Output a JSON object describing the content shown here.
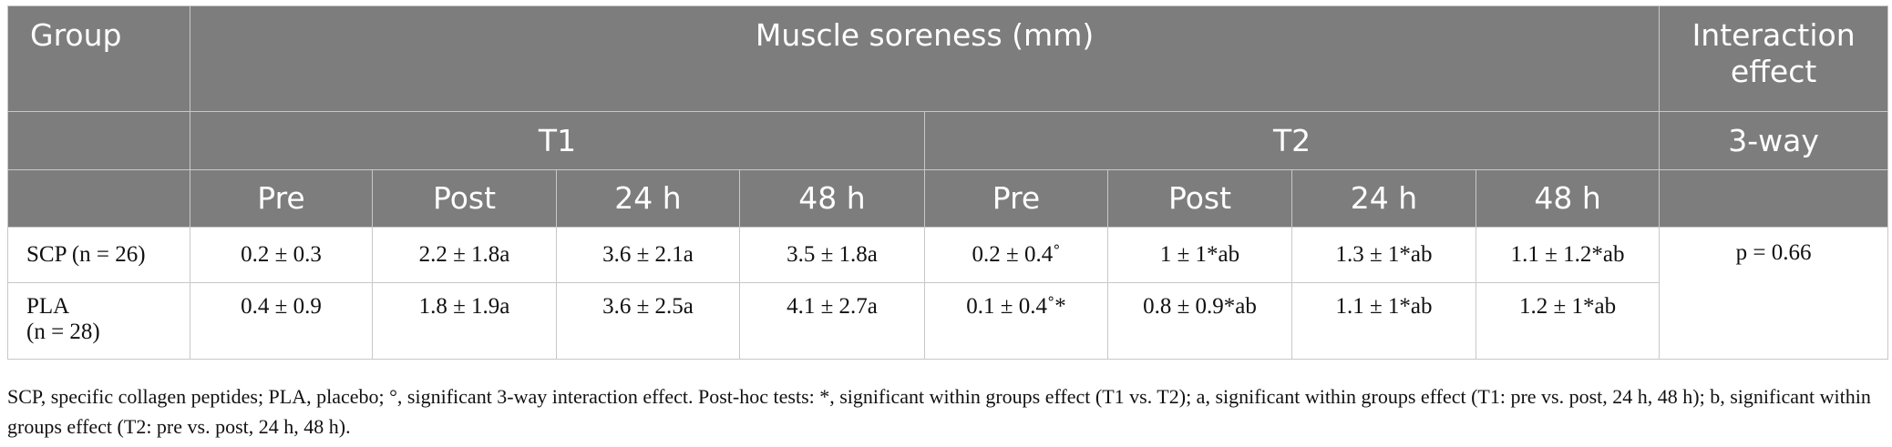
{
  "table": {
    "group_header": "Group",
    "muscle_header": "Muscle soreness (mm)",
    "interaction_header": "Interaction effect",
    "t1_header": "T1",
    "t2_header": "T2",
    "three_way_header": "3-way",
    "time_headers": [
      "Pre",
      "Post",
      "24 h",
      "48 h",
      "Pre",
      "Post",
      "24 h",
      "48 h"
    ],
    "rows": [
      {
        "group_name": "SCP",
        "group_n": "(n = 26)",
        "values": [
          "0.2 ± 0.3",
          "2.2 ± 1.8a",
          "3.6 ± 2.1a",
          "3.5 ± 1.8a",
          "0.2 ± 0.4˚",
          "1 ± 1*ab",
          "1.3 ± 1*ab",
          "1.1 ± 1.2*ab"
        ]
      },
      {
        "group_name": "PLA",
        "group_n": "(n = 28)",
        "values": [
          "0.4 ± 0.9",
          "1.8 ± 1.9a",
          "3.6 ± 2.5a",
          "4.1 ± 2.7a",
          "0.1 ± 0.4˚*",
          "0.8 ± 0.9*ab",
          "1.1 ± 1*ab",
          "1.2 ± 1*ab"
        ]
      }
    ],
    "interaction_value": "p = 0.66"
  },
  "footnote": "SCP, specific collagen peptides; PLA, placebo; °, significant 3-way interaction effect. Post-hoc tests: *, significant within groups effect (T1 vs. T2); a, significant within groups effect (T1: pre vs. post, 24 h, 48 h); b, significant within groups effect (T2: pre vs. post, 24 h, 48 h)."
}
